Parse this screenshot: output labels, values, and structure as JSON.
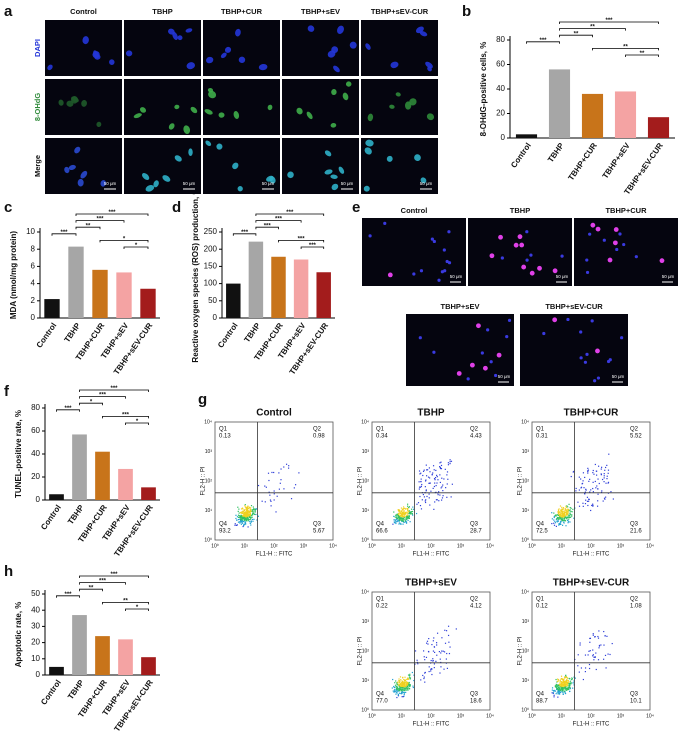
{
  "chart_data": [
    {
      "type": "bar",
      "panel_letter": "b",
      "ylabel": "8-OHdG-positive cells, %",
      "categories": [
        "Control",
        "TBHP",
        "TBHP+CUR",
        "TBHP+sEV",
        "TBHP+sEV-CUR"
      ],
      "values": [
        3,
        56,
        36,
        38,
        17
      ],
      "colors": [
        "#111111",
        "#a6a6a6",
        "#c8741a",
        "#f4a3a3",
        "#a31c1c"
      ],
      "ylim": [
        0,
        80
      ],
      "yticks": [
        0,
        20,
        40,
        60,
        80
      ],
      "significance": [
        {
          "between": [
            "TBHP",
            "TBHP+sEV-CUR"
          ],
          "label": "***"
        },
        {
          "between": [
            "TBHP",
            "TBHP+sEV"
          ],
          "label": "**"
        },
        {
          "between": [
            "TBHP",
            "TBHP+CUR"
          ],
          "label": "**"
        },
        {
          "between": [
            "Control",
            "TBHP"
          ],
          "label": "***"
        },
        {
          "between": [
            "TBHP+CUR",
            "TBHP+sEV-CUR"
          ],
          "label": "**"
        },
        {
          "between": [
            "TBHP+sEV",
            "TBHP+sEV-CUR"
          ],
          "label": "**"
        }
      ]
    },
    {
      "type": "bar",
      "panel_letter": "c",
      "ylabel": "MDA (nmol/mg protein)",
      "categories": [
        "Control",
        "TBHP",
        "TBHP+CUR",
        "TBHP+sEV",
        "TBHP+sEV-CUR"
      ],
      "values": [
        2.2,
        8.3,
        5.6,
        5.3,
        3.4
      ],
      "colors": [
        "#111111",
        "#a6a6a6",
        "#c8741a",
        "#f4a3a3",
        "#a31c1c"
      ],
      "ylim": [
        0,
        10
      ],
      "yticks": [
        0,
        2,
        4,
        6,
        8,
        10
      ],
      "significance": [
        {
          "between": [
            "TBHP",
            "TBHP+sEV-CUR"
          ],
          "label": "***"
        },
        {
          "between": [
            "TBHP",
            "TBHP+sEV"
          ],
          "label": "***"
        },
        {
          "between": [
            "TBHP",
            "TBHP+CUR"
          ],
          "label": "**"
        },
        {
          "between": [
            "Control",
            "TBHP"
          ],
          "label": "***"
        },
        {
          "between": [
            "TBHP+CUR",
            "TBHP+sEV-CUR"
          ],
          "label": "*"
        },
        {
          "between": [
            "TBHP+sEV",
            "TBHP+sEV-CUR"
          ],
          "label": "*"
        }
      ]
    },
    {
      "type": "bar",
      "panel_letter": "d",
      "ylabel": "Reactive oxygen species (ROS) production, %",
      "categories": [
        "Control",
        "TBHP",
        "TBHP+CUR",
        "TBHP+sEV",
        "TBHP+sEV-CUR"
      ],
      "values": [
        100,
        222,
        178,
        170,
        133
      ],
      "colors": [
        "#111111",
        "#a6a6a6",
        "#c8741a",
        "#f4a3a3",
        "#a31c1c"
      ],
      "ylim": [
        0,
        250
      ],
      "yticks": [
        0,
        50,
        100,
        150,
        200,
        250
      ],
      "significance": [
        {
          "between": [
            "TBHP",
            "TBHP+sEV-CUR"
          ],
          "label": "***"
        },
        {
          "between": [
            "TBHP",
            "TBHP+sEV"
          ],
          "label": "***"
        },
        {
          "between": [
            "TBHP",
            "TBHP+CUR"
          ],
          "label": "***"
        },
        {
          "between": [
            "Control",
            "TBHP"
          ],
          "label": "***"
        },
        {
          "between": [
            "TBHP+CUR",
            "TBHP+sEV-CUR"
          ],
          "label": "***"
        },
        {
          "between": [
            "TBHP+sEV",
            "TBHP+sEV-CUR"
          ],
          "label": "***"
        }
      ]
    },
    {
      "type": "bar",
      "panel_letter": "f",
      "ylabel": "TUNEL-positive rate, %",
      "categories": [
        "Control",
        "TBHP",
        "TBHP+CUR",
        "TBHP+sEV",
        "TBHP+sEV-CUR"
      ],
      "values": [
        5,
        57,
        42,
        27,
        11
      ],
      "colors": [
        "#111111",
        "#a6a6a6",
        "#c8741a",
        "#f4a3a3",
        "#a31c1c"
      ],
      "ylim": [
        0,
        80
      ],
      "yticks": [
        0,
        20,
        40,
        60,
        80
      ],
      "significance": [
        {
          "between": [
            "TBHP",
            "TBHP+sEV-CUR"
          ],
          "label": "***"
        },
        {
          "between": [
            "TBHP",
            "TBHP+sEV"
          ],
          "label": "***"
        },
        {
          "between": [
            "TBHP",
            "TBHP+CUR"
          ],
          "label": "*"
        },
        {
          "between": [
            "Control",
            "TBHP"
          ],
          "label": "***"
        },
        {
          "between": [
            "TBHP+CUR",
            "TBHP+sEV-CUR"
          ],
          "label": "***"
        },
        {
          "between": [
            "TBHP+sEV",
            "TBHP+sEV-CUR"
          ],
          "label": "*"
        }
      ]
    },
    {
      "type": "bar",
      "panel_letter": "h",
      "ylabel": "Apoptotic rate, %",
      "categories": [
        "Control",
        "TBHP",
        "TBHP+CUR",
        "TBHP+sEV",
        "TBHP+sEV-CUR"
      ],
      "values": [
        5,
        37,
        24,
        22,
        11
      ],
      "colors": [
        "#111111",
        "#a6a6a6",
        "#c8741a",
        "#f4a3a3",
        "#a31c1c"
      ],
      "ylim": [
        0,
        50
      ],
      "yticks": [
        0,
        10,
        20,
        30,
        40,
        50
      ],
      "significance": [
        {
          "between": [
            "TBHP",
            "TBHP+sEV-CUR"
          ],
          "label": "***"
        },
        {
          "between": [
            "TBHP",
            "TBHP+sEV"
          ],
          "label": "***"
        },
        {
          "between": [
            "TBHP",
            "TBHP+CUR"
          ],
          "label": "**"
        },
        {
          "between": [
            "Control",
            "TBHP"
          ],
          "label": "***"
        },
        {
          "between": [
            "TBHP+CUR",
            "TBHP+sEV-CUR"
          ],
          "label": "**"
        },
        {
          "between": [
            "TBHP+sEV",
            "TBHP+sEV-CUR"
          ],
          "label": "*"
        }
      ]
    }
  ],
  "panel_a": {
    "panel_letter": "a",
    "columns": [
      "Control",
      "TBHP",
      "TBHP+CUR",
      "TBHP+sEV",
      "TBHP+sEV-CUR"
    ],
    "rows": [
      "DAPI",
      "8-OHdG",
      "Merge"
    ],
    "scale_bar": "50 μm"
  },
  "panel_e": {
    "panel_letter": "e",
    "images": [
      "Control",
      "TBHP",
      "TBHP+CUR",
      "TBHP+sEV",
      "TBHP+sEV-CUR"
    ],
    "scale_bar": "50 μm"
  },
  "panel_g": {
    "panel_letter": "g",
    "x_axis_label": "FL1-H :: FITC",
    "y_axis_label": "FL2-H :: PI",
    "ticks": [
      "10⁰",
      "10¹",
      "10²",
      "10³",
      "10⁴"
    ],
    "quadrant_names": [
      "Q1",
      "Q2",
      "Q3",
      "Q4"
    ],
    "plots": [
      {
        "title": "Control",
        "quadrants": [
          "0.13",
          "0.98",
          "5.67",
          "93.2"
        ]
      },
      {
        "title": "TBHP",
        "quadrants": [
          "0.34",
          "4.43",
          "28.7",
          "66.6"
        ]
      },
      {
        "title": "TBHP+CUR",
        "quadrants": [
          "0.31",
          "5.52",
          "21.6",
          "72.5"
        ]
      },
      {
        "title": "TBHP+sEV",
        "quadrants": [
          "0.22",
          "4.12",
          "18.6",
          "77.0"
        ]
      },
      {
        "title": "TBHP+sEV-CUR",
        "quadrants": [
          "0.12",
          "1.08",
          "10.1",
          "88.7"
        ]
      }
    ]
  }
}
